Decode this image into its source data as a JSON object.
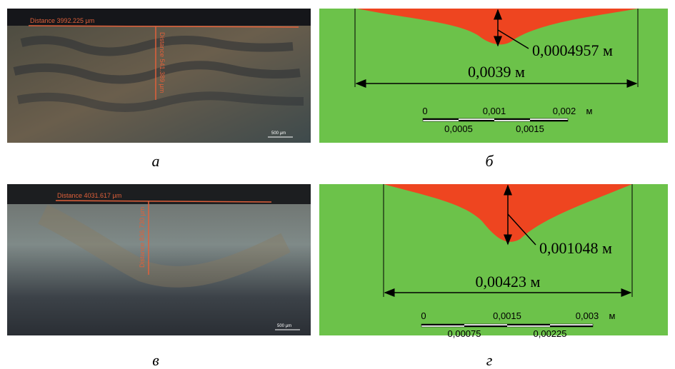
{
  "panels": [
    {
      "caption": "а",
      "texts": [
        "Distance 3992.225 µm",
        "Distance 541.389 µm",
        "500 µm"
      ]
    },
    {
      "caption": "б",
      "depth": "0,0004957 м",
      "width": "0,0039 м",
      "scale_top": [
        "0",
        "0,001",
        "0,002",
        "м"
      ],
      "scale_bottom": [
        "0,0005",
        "0,0015"
      ]
    },
    {
      "caption": "в",
      "texts": [
        "Distance 4031.617 µm",
        "Distance 836.730 µm",
        "500 µm"
      ]
    },
    {
      "caption": "г",
      "depth": "0,001048 м",
      "width": "0,00423 м",
      "scale_top": [
        "0",
        "0,0015",
        "0,003",
        "м"
      ],
      "scale_bottom": [
        "0,00075",
        "0,00225"
      ]
    }
  ]
}
